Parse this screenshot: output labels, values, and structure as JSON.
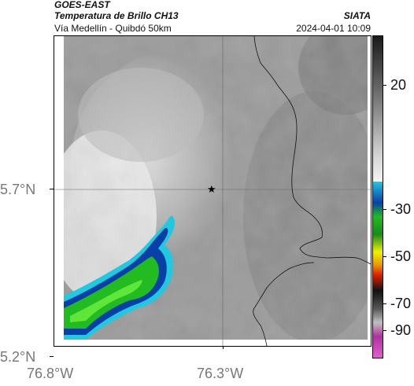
{
  "header": {
    "satellite": "GOES-EAST",
    "product": "Temperatura de Brillo CH13",
    "route": "Vía Medellín - Quibdó 50km",
    "org": "SIATA",
    "datetime": "2024-04-01 10:09"
  },
  "map": {
    "lat_labels": [
      "5.7°N",
      "5.2°N"
    ],
    "lon_labels": [
      "76.8°W",
      "76.3°W"
    ],
    "marker": "star-marker"
  },
  "colorbar": {
    "labels": [
      "20",
      "-30",
      "-50",
      "-70",
      "-90"
    ],
    "colors": {
      "gray_top": "#1a1a1a",
      "gray_bottom": "#f5f5f5",
      "cyan": "#22c8e0",
      "blue": "#0a3fa8",
      "green": "#22bb22",
      "yellow": "#f0f000",
      "red": "#e02000",
      "black": "#111111",
      "magenta": "#b030a0"
    }
  }
}
